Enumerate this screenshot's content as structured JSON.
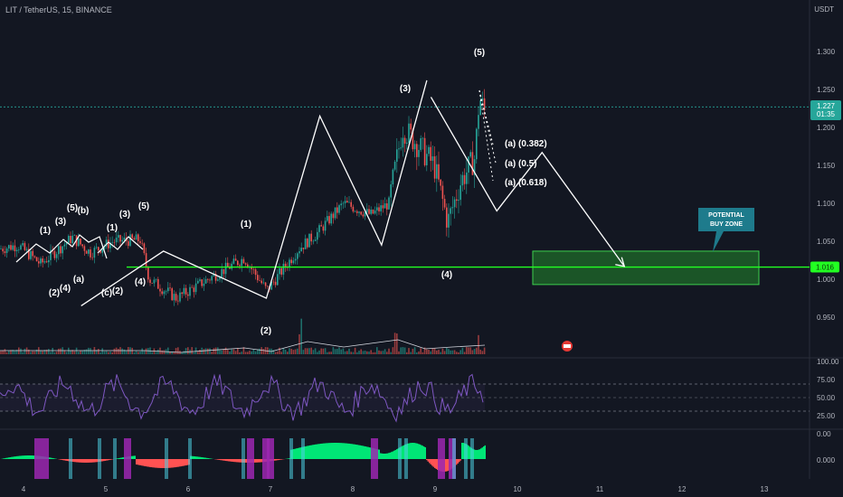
{
  "header": {
    "symbol": "LIT / TetherUS, 15, BINANCE",
    "currency": "USDT"
  },
  "colors": {
    "background": "#131722",
    "wave_line": "#ffffff",
    "support_line": "#22ff22",
    "buy_zone_fill": "#1f6b2a",
    "buy_zone_border": "#3ccf4e",
    "callout_bg": "#1e7b8c",
    "up_candle": "#26a69a",
    "down_candle": "#ef5350",
    "rsi_line": "#7e57c2",
    "osc_green": "#00e676",
    "osc_red": "#ff5252",
    "osc_purple": "#9c27b0",
    "osc_teal": "#4dd0e1"
  },
  "chart_data": {
    "type": "candlestick",
    "x_axis": {
      "ticks": [
        "4",
        "5",
        "6",
        "7",
        "8",
        "9",
        "10",
        "11",
        "12",
        "13"
      ]
    },
    "y_axis": {
      "ticks": [
        "1.300",
        "1.250",
        "1.200",
        "1.150",
        "1.100",
        "1.050",
        "1.000",
        "0.950"
      ],
      "range": [
        0.92,
        1.33
      ]
    },
    "current_price": {
      "value": "1.227",
      "countdown": "01:35"
    },
    "support_level": {
      "value": "1.016"
    },
    "elliott_path": [
      {
        "x": 4.7,
        "y": 0.965
      },
      {
        "x": 5.7,
        "y": 1.037
      },
      {
        "x": 6.95,
        "y": 0.975
      },
      {
        "x": 7.6,
        "y": 1.215
      },
      {
        "x": 8.35,
        "y": 1.045
      },
      {
        "x": 8.9,
        "y": 1.262
      }
    ],
    "projection_path": [
      {
        "x": 8.95,
        "y": 1.24
      },
      {
        "x": 9.75,
        "y": 1.09
      },
      {
        "x": 10.3,
        "y": 1.167
      },
      {
        "x": 11.3,
        "y": 1.017
      }
    ],
    "retracement_levels": [
      "(a) (0.382)",
      "(a) (0.5)",
      "(a) (0.618)"
    ],
    "wave_labels": [
      {
        "text": "(1)",
        "x": 1.65,
        "y": 1.063
      },
      {
        "text": "(3)",
        "x": 2.12,
        "y": 1.073
      },
      {
        "text": "(5)",
        "x": 2.45,
        "y": 1.094
      },
      {
        "text": "(b)",
        "x": 2.62,
        "y": 1.09
      },
      {
        "text": "(1)",
        "x": 3.25,
        "y": 1.063
      },
      {
        "text": "(3)",
        "x": 3.45,
        "y": 1.082
      },
      {
        "text": "(5)",
        "x": 3.72,
        "y": 1.096
      },
      {
        "text": "(2)",
        "x": 1.95,
        "y": 0.995
      },
      {
        "text": "(4)",
        "x": 2.1,
        "y": 1.0
      },
      {
        "text": "(a)",
        "x": 2.35,
        "y": 1.01
      },
      {
        "text": "(c)",
        "x": 2.95,
        "y": 0.995
      },
      {
        "text": "(2)",
        "x": 3.05,
        "y": 0.997
      },
      {
        "text": "(4)",
        "x": 3.75,
        "y": 1.007
      },
      {
        "text": "(1)",
        "x": 5.65,
        "y": 1.07
      },
      {
        "text": "(2)",
        "x": 5.95,
        "y": 0.952
      },
      {
        "text": "(3)",
        "x": 7.3,
        "y": 1.252
      },
      {
        "text": "(4)",
        "x": 8.1,
        "y": 1.023
      },
      {
        "text": "(5)",
        "x": 9.05,
        "y": 1.305
      }
    ],
    "buy_zone": {
      "label_line1": "POTENTIAL",
      "label_line2": "BUY ZONE",
      "y_top": 1.037,
      "y_bottom": 0.993
    },
    "rsi": {
      "ticks": [
        "100.00",
        "75.00",
        "50.00",
        "25.00",
        "0.00"
      ]
    },
    "oscillator": {
      "ticks": [
        "0.000"
      ]
    }
  }
}
